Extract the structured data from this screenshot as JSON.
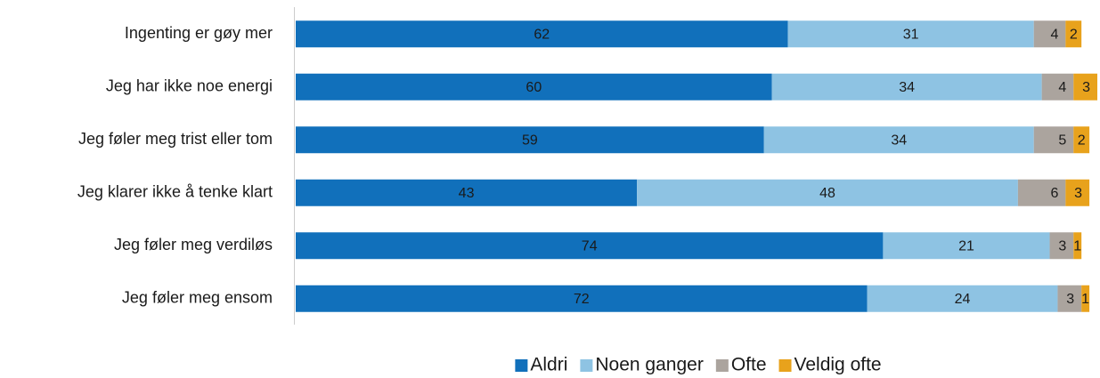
{
  "chart_data": {
    "type": "stacked_barh",
    "categories": [
      "Ingenting er gøy mer",
      "Jeg har ikke noe energi",
      "Jeg føler meg trist eller tom",
      "Jeg klarer ikke å tenke klart",
      "Jeg føler meg verdiløs",
      "Jeg føler meg ensom"
    ],
    "series": [
      {
        "name": "Aldri",
        "color": "#1170bb",
        "values": [
          62,
          60,
          59,
          43,
          74,
          72
        ]
      },
      {
        "name": "Noen ganger",
        "color": "#8ec3e3",
        "values": [
          31,
          34,
          34,
          48,
          21,
          24
        ]
      },
      {
        "name": "Ofte",
        "color": "#aba49e",
        "values": [
          4,
          4,
          5,
          6,
          3,
          3
        ]
      },
      {
        "name": "Veldig ofte",
        "color": "#e8a21c",
        "values": [
          2,
          3,
          2,
          3,
          1,
          1
        ]
      }
    ],
    "xlim": [
      0,
      101
    ],
    "legend": "bottom"
  }
}
